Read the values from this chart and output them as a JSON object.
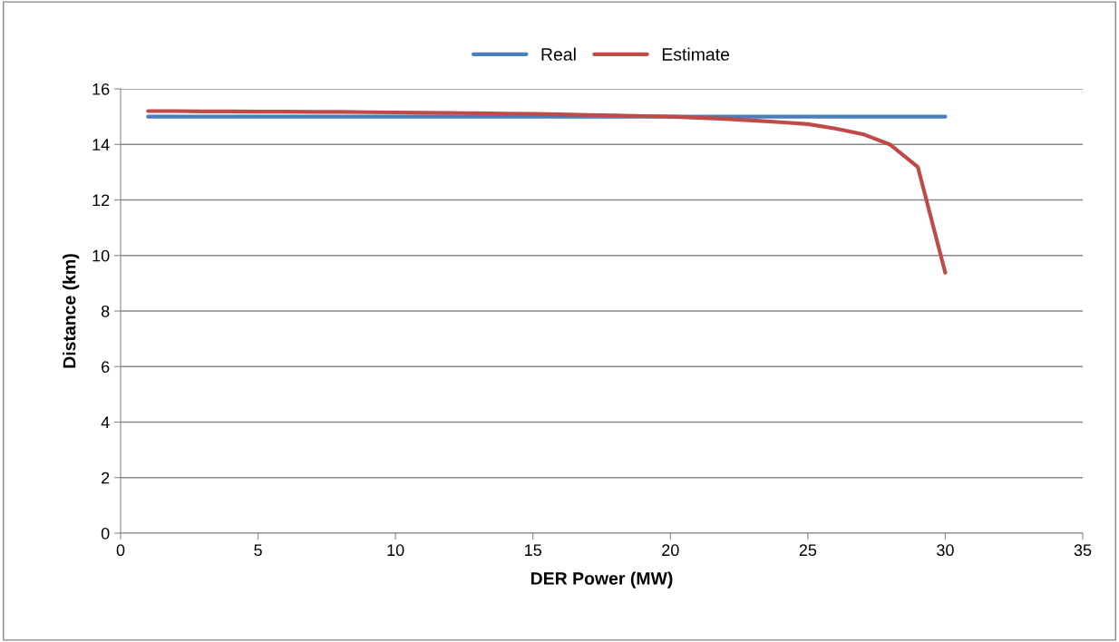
{
  "chart_data": {
    "type": "line",
    "xlabel": "DER Power (MW)",
    "ylabel": "Distance (km)",
    "x": [
      1,
      2,
      3,
      4,
      5,
      6,
      7,
      8,
      9,
      10,
      11,
      12,
      13,
      14,
      15,
      16,
      17,
      18,
      19,
      20,
      21,
      22,
      23,
      24,
      25,
      26,
      27,
      28,
      29,
      30
    ],
    "series": [
      {
        "name": "Real",
        "color": "#4a7ebb",
        "values": [
          15,
          15,
          15,
          15,
          15,
          15,
          15,
          15,
          15,
          15,
          15,
          15,
          15,
          15,
          15,
          15,
          15,
          15,
          15,
          15,
          15,
          15,
          15,
          15,
          15,
          15,
          15,
          15,
          15,
          15
        ]
      },
      {
        "name": "Estimate",
        "color": "#be4b48",
        "values": [
          15.2,
          15.2,
          15.19,
          15.19,
          15.18,
          15.18,
          15.17,
          15.17,
          15.16,
          15.15,
          15.14,
          15.13,
          15.12,
          15.11,
          15.1,
          15.08,
          15.06,
          15.04,
          15.02,
          15.0,
          14.96,
          14.92,
          14.86,
          14.8,
          14.73,
          14.57,
          14.37,
          13.99,
          13.19,
          9.38
        ]
      }
    ],
    "xlim": [
      0,
      35
    ],
    "xticks": [
      0,
      5,
      10,
      15,
      20,
      25,
      30,
      35
    ],
    "ylim": [
      0,
      16
    ],
    "yticks": [
      0,
      2,
      4,
      6,
      8,
      10,
      12,
      14,
      16
    ],
    "grid": "y",
    "legend": "top",
    "marker": "none",
    "line_style": "solid"
  }
}
